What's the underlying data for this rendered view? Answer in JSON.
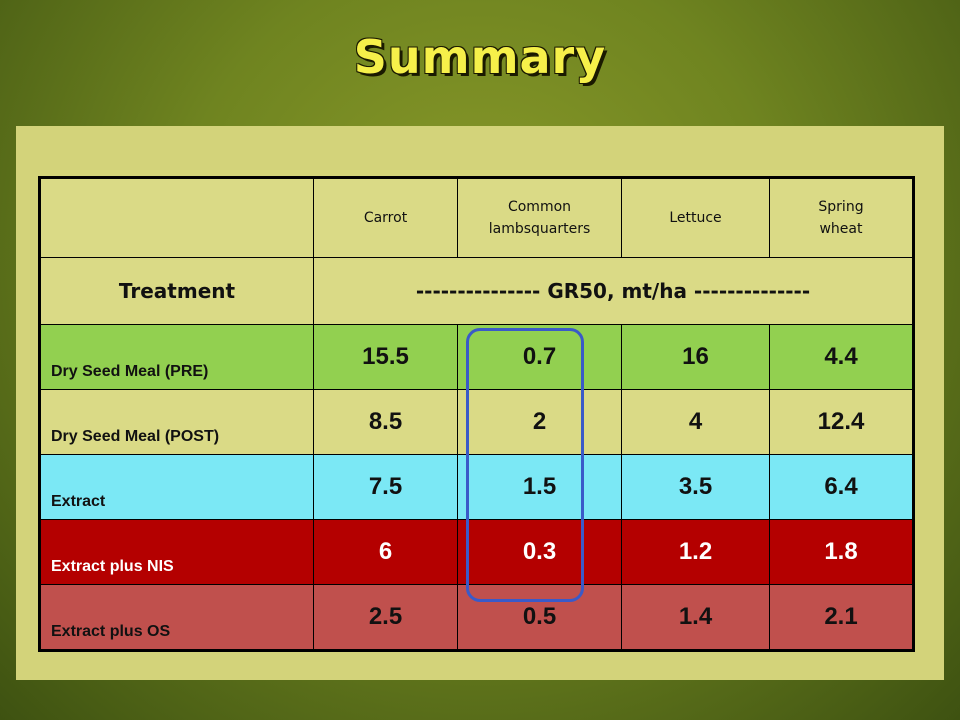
{
  "title": "Summary",
  "table": {
    "columns": [
      "Carrot",
      "Common lambsquarters",
      "Lettuce",
      "Spring wheat"
    ],
    "columns_lines": [
      [
        "Carrot"
      ],
      [
        "Common",
        "lambsquarters"
      ],
      [
        "Lettuce"
      ],
      [
        "Spring",
        "wheat"
      ]
    ],
    "treatment_label": "Treatment",
    "units_label": "--------------- GR50, mt/ha --------------",
    "rows": [
      {
        "label": "Dry Seed Meal (PRE)",
        "values": [
          "15.5",
          "0.7",
          "16",
          "4.4"
        ],
        "color": "#92d050"
      },
      {
        "label": "Dry Seed Meal (POST)",
        "values": [
          "8.5",
          "2",
          "4",
          "12.4"
        ],
        "color": "#dada86"
      },
      {
        "label": "Extract",
        "values": [
          "7.5",
          "1.5",
          "3.5",
          "6.4"
        ],
        "color": "#7be8f5"
      },
      {
        "label": "Extract plus NIS",
        "values": [
          "6",
          "0.3",
          "1.2",
          "1.8"
        ],
        "color": "#b40000"
      },
      {
        "label": "Extract plus OS",
        "values": [
          "2.5",
          "0.5",
          "1.4",
          "2.1"
        ],
        "color": "#c0504d"
      }
    ]
  },
  "highlight_column": "Common lambsquarters",
  "highlight_color": "#3a5ac8"
}
